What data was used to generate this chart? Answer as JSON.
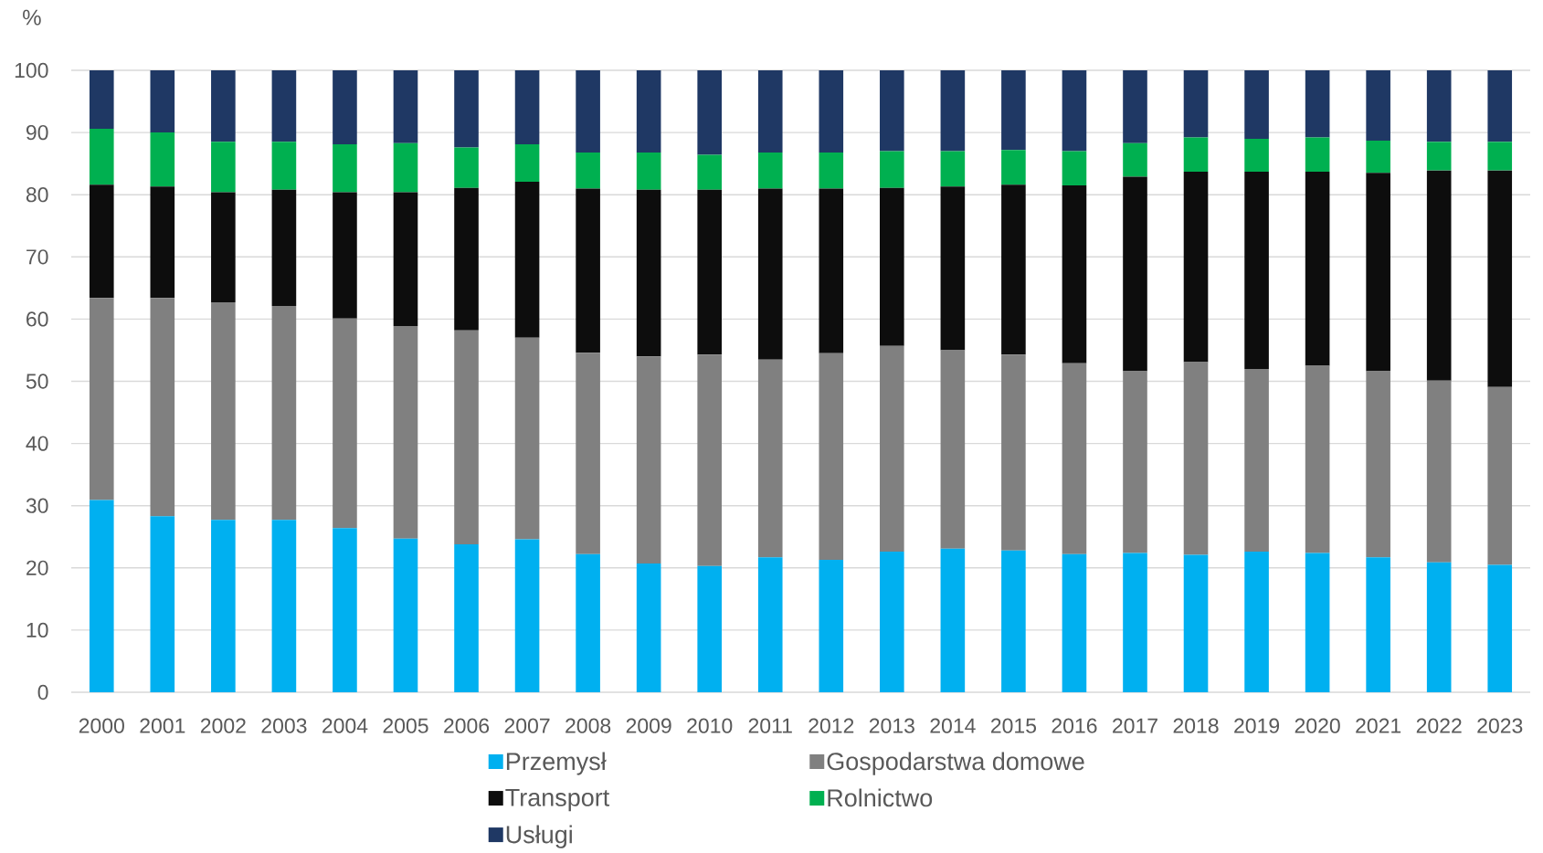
{
  "chart_data": {
    "type": "bar",
    "stacked": true,
    "ylabel": "%",
    "categories": [
      "2000",
      "2001",
      "2002",
      "2003",
      "2004",
      "2005",
      "2006",
      "2007",
      "2008",
      "2009",
      "2010",
      "2011",
      "2012",
      "2013",
      "2014",
      "2015",
      "2016",
      "2017",
      "2018",
      "2019",
      "2020",
      "2021",
      "2022",
      "2023"
    ],
    "series": [
      {
        "name": "Przemysł",
        "color": "#00b0f0",
        "values": [
          30.9,
          28.3,
          27.7,
          27.7,
          26.4,
          24.7,
          23.8,
          24.6,
          22.2,
          20.7,
          20.3,
          21.7,
          21.3,
          22.6,
          23.1,
          22.8,
          22.2,
          22.4,
          22.1,
          22.6,
          22.4,
          21.7,
          20.9,
          20.5
        ]
      },
      {
        "name": "Gospodarstwa domowe",
        "color": "#808080",
        "values": [
          32.5,
          35.1,
          35.0,
          34.4,
          33.7,
          34.2,
          34.4,
          32.4,
          32.4,
          33.3,
          34.0,
          31.8,
          33.2,
          33.1,
          31.9,
          31.5,
          30.7,
          29.2,
          31.0,
          29.4,
          30.1,
          29.9,
          29.2,
          28.6
        ]
      },
      {
        "name": "Transport",
        "color": "#0d0d0d",
        "values": [
          18.2,
          17.9,
          17.7,
          18.7,
          20.3,
          21.5,
          22.9,
          25.1,
          26.4,
          26.8,
          26.5,
          27.5,
          26.5,
          25.4,
          26.3,
          27.3,
          28.6,
          31.3,
          30.6,
          31.7,
          31.2,
          31.9,
          33.8,
          34.8
        ]
      },
      {
        "name": "Rolnictwo",
        "color": "#00b050",
        "values": [
          9.0,
          8.7,
          8.1,
          7.7,
          7.7,
          7.9,
          6.5,
          6.0,
          5.8,
          6.0,
          5.6,
          5.8,
          5.8,
          5.9,
          5.7,
          5.6,
          5.5,
          5.4,
          5.5,
          5.3,
          5.5,
          5.2,
          4.6,
          4.6
        ]
      },
      {
        "name": "Usługi",
        "color": "#1f3864",
        "values": [
          9.4,
          10.0,
          11.5,
          11.5,
          11.9,
          11.7,
          12.4,
          11.9,
          13.2,
          13.2,
          13.6,
          13.2,
          13.2,
          13.0,
          13.0,
          12.8,
          13.0,
          11.7,
          10.8,
          11.0,
          10.8,
          11.3,
          11.5,
          11.5
        ]
      }
    ],
    "ylim": [
      0,
      100
    ],
    "yticks": [
      0,
      10,
      20,
      30,
      40,
      50,
      60,
      70,
      80,
      90,
      100
    ],
    "grid": "y",
    "legend": "bottom"
  }
}
